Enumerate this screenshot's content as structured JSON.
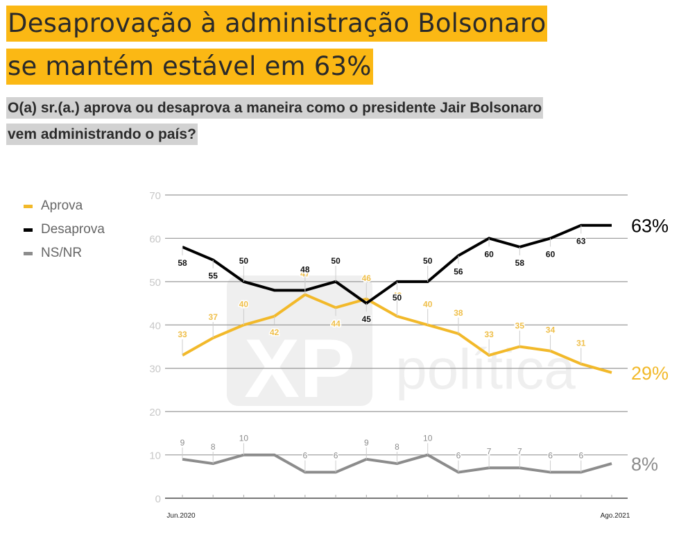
{
  "header": {
    "title_lines": [
      "Desaprovação à administração Bolsonaro",
      "se mantém estável em 63%"
    ],
    "subtitle_lines": [
      "O(a) sr.(a.) aprova ou desaprova a maneira como o presidente Jair Bolsonaro",
      "vem administrando o país?"
    ]
  },
  "colors": {
    "title_bg": "#fbb814",
    "subtitle_bg": "#d2d2d2",
    "aprova": "#f2b92a",
    "desaprova": "#000000",
    "nsnr": "#8c8c8c",
    "grid": "#999999",
    "watermark": "#efefef"
  },
  "watermark": {
    "logo": "XP",
    "text": "política"
  },
  "chart_data": {
    "type": "line",
    "title": "Desaprovação à administração Bolsonaro se mantém estável em 63%",
    "subtitle": "O(a) sr.(a.) aprova ou desaprova a maneira como o presidente Jair Bolsonaro vem administrando o país?",
    "xlabel": "",
    "ylabel": "",
    "ylim": [
      0,
      70
    ],
    "yticks": [
      0,
      10,
      20,
      30,
      40,
      50,
      60,
      70
    ],
    "grid": true,
    "legend_position": "top-left",
    "x_tick_labels": {
      "first": "Jun.2020",
      "last": "Ago.2021"
    },
    "n_points": 15,
    "series": [
      {
        "name": "Aprova",
        "color": "#f2b92a",
        "values": [
          33,
          37,
          40,
          42,
          47,
          44,
          46,
          42,
          40,
          38,
          33,
          35,
          34,
          31,
          29
        ],
        "labels": [
          "33",
          "37",
          "40",
          "42",
          "47",
          "44",
          "46",
          "42",
          "40",
          "38",
          "33",
          "35",
          "34",
          "31",
          null
        ],
        "label_pos": [
          "above",
          "above",
          "above",
          "below",
          "above",
          "below",
          "above",
          "above",
          "above",
          "above",
          "above",
          "above",
          "above",
          "above",
          null
        ],
        "end_label": "29%"
      },
      {
        "name": "Desaprova",
        "color": "#000000",
        "values": [
          58,
          55,
          50,
          48,
          48,
          50,
          45,
          50,
          50,
          56,
          60,
          58,
          60,
          63,
          63
        ],
        "labels": [
          "58",
          "55",
          "50",
          null,
          "48",
          "50",
          "45",
          "50",
          "50",
          "56",
          "60",
          "58",
          "60",
          "63",
          null
        ],
        "label_pos": [
          "below",
          "below",
          "above",
          null,
          "above",
          "above",
          "below",
          "below",
          "above",
          "below",
          "below",
          "below",
          "below",
          "below",
          null
        ],
        "end_label": "63%"
      },
      {
        "name": "NS/NR",
        "color": "#8c8c8c",
        "values": [
          9,
          8,
          10,
          10,
          6,
          6,
          9,
          8,
          10,
          6,
          7,
          7,
          6,
          6,
          8
        ],
        "labels": [
          "9",
          "8",
          "10",
          null,
          "6",
          "6",
          "9",
          "8",
          "10",
          "6",
          "7",
          "7",
          "6",
          "6",
          null
        ],
        "label_pos": [
          "above",
          "above",
          "above",
          null,
          "above",
          "above",
          "above",
          "above",
          "above",
          "above",
          "above",
          "above",
          "above",
          "above",
          null
        ],
        "end_label": "8%"
      }
    ]
  }
}
